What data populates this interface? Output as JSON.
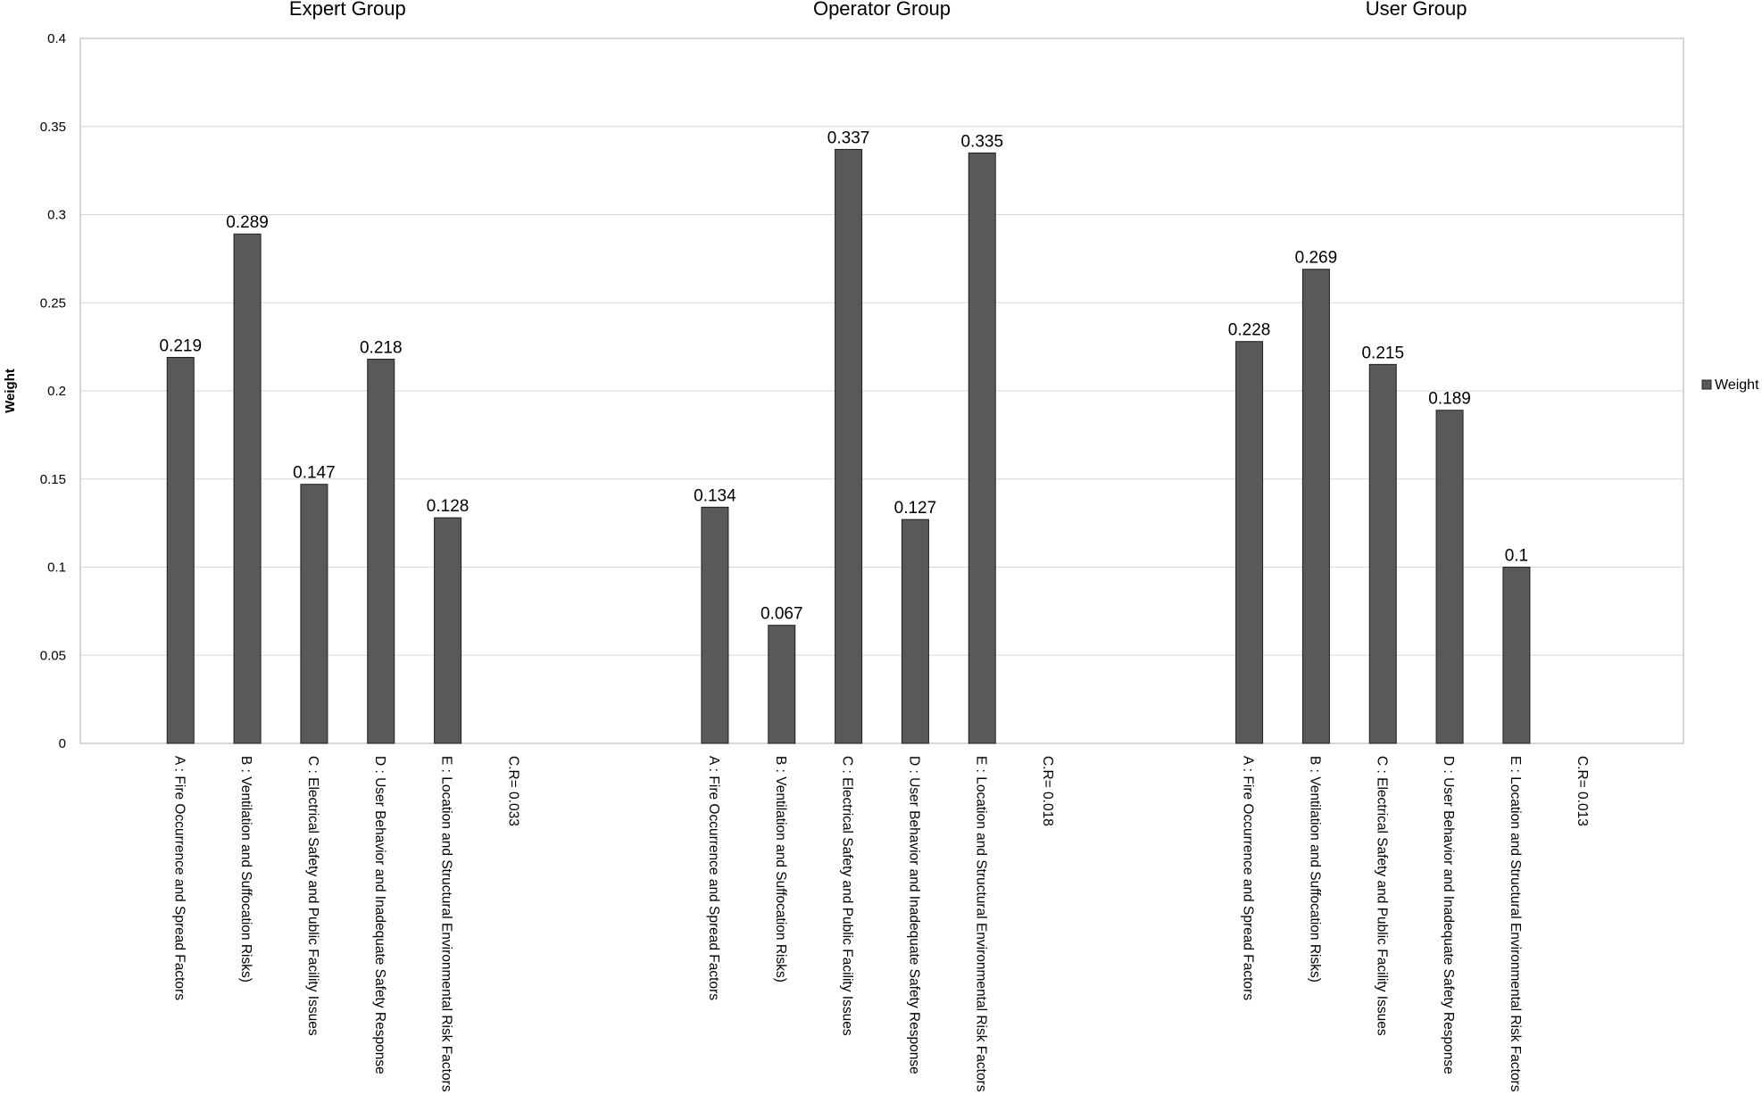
{
  "chart_data": {
    "type": "bar",
    "ylabel": "Weight",
    "ylim": [
      0,
      0.4
    ],
    "yticks": [
      "0",
      "0.05",
      "0.1",
      "0.15",
      "0.2",
      "0.25",
      "0.3",
      "0.35",
      "0.4"
    ],
    "grid": true,
    "legend": {
      "position": "right",
      "entries": [
        "Weight"
      ]
    },
    "bar_color": "#595959",
    "series": [
      {
        "name": "Weight"
      }
    ],
    "groups": [
      {
        "title": "Expert Group",
        "categories": [
          "A : Fire Occurrence and Spread Factors",
          "B : Ventilation and Suffocation Risks)",
          "C : Electrical Safety and Public Facility Issues",
          "D : User Behavior and Inadequate Safety Response",
          "E : Location and Structural Environmental Risk Factors",
          "C.R= 0.033"
        ],
        "values": [
          0.219,
          0.289,
          0.147,
          0.218,
          0.128,
          null
        ],
        "value_labels": [
          "0.219",
          "0.289",
          "0.147",
          "0.218",
          "0.128",
          ""
        ]
      },
      {
        "title": "Operator Group",
        "categories": [
          "A : Fire Occurrence and Spread Factors",
          "B : Ventilation and Suffocation Risks)",
          "C : Electrical Safety and Public Facility Issues",
          "D : User Behavior and Inadequate Safety Response",
          "E : Location and Structural Environmental Risk Factors",
          "C.R= 0.018"
        ],
        "values": [
          0.134,
          0.067,
          0.337,
          0.127,
          0.335,
          null
        ],
        "value_labels": [
          "0.134",
          "0.067",
          "0.337",
          "0.127",
          "0.335",
          ""
        ]
      },
      {
        "title": "User Group",
        "categories": [
          "A : Fire Occurrence and Spread Factors",
          "B : Ventilation and Suffocation Risks)",
          "C : Electrical Safety and Public Facility Issues",
          "D : User Behavior and Inadequate Safety Response",
          "E : Location and Structural Environmental Risk Factors",
          "C.R= 0.013"
        ],
        "values": [
          0.228,
          0.269,
          0.215,
          0.189,
          0.1,
          null
        ],
        "value_labels": [
          "0.228",
          "0.269",
          "0.215",
          "0.189",
          "0.1",
          ""
        ]
      }
    ]
  }
}
